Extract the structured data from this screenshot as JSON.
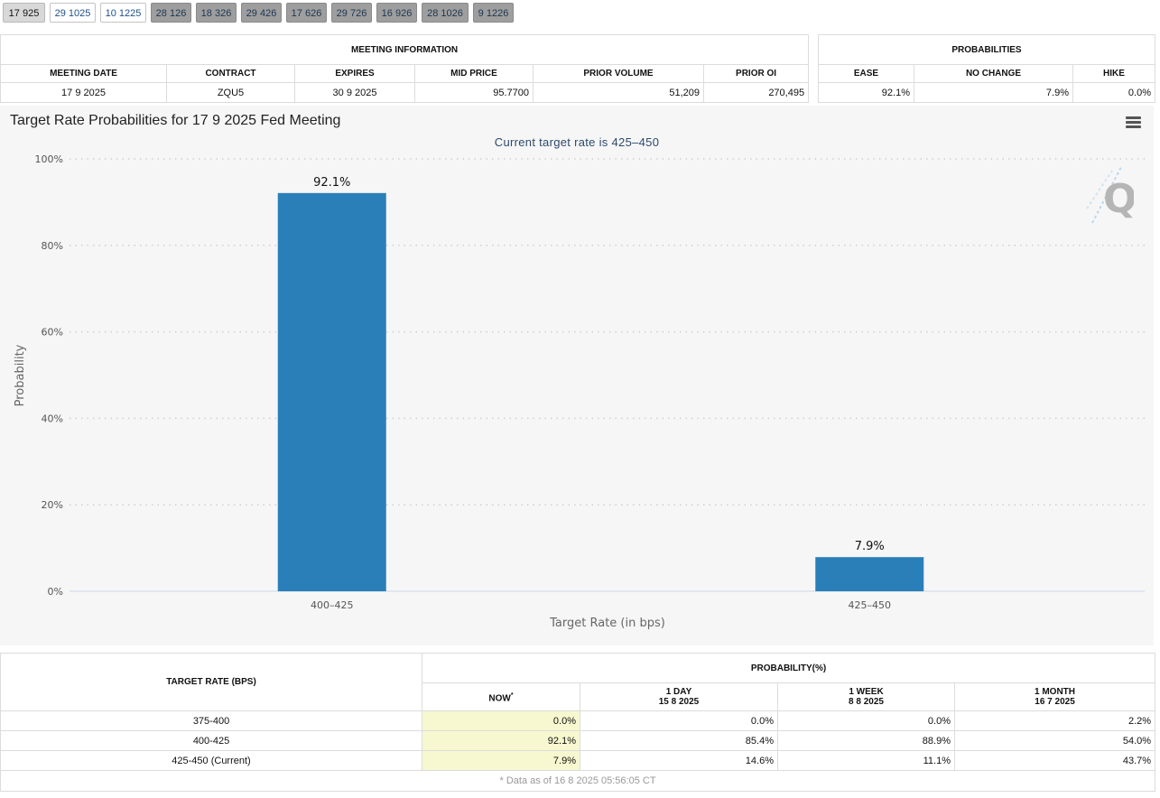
{
  "tabs": [
    {
      "label": "17 925",
      "state": "active"
    },
    {
      "label": "29 1025",
      "state": "light"
    },
    {
      "label": "10 1225",
      "state": "light"
    },
    {
      "label": "28 126",
      "state": "dark"
    },
    {
      "label": "18 326",
      "state": "dark"
    },
    {
      "label": "29 426",
      "state": "dark"
    },
    {
      "label": "17 626",
      "state": "dark"
    },
    {
      "label": "29 726",
      "state": "dark"
    },
    {
      "label": "16 926",
      "state": "dark"
    },
    {
      "label": "28 1026",
      "state": "dark"
    },
    {
      "label": "9 1226",
      "state": "dark"
    }
  ],
  "meeting_info": {
    "caption": "MEETING INFORMATION",
    "headers": [
      "MEETING DATE",
      "CONTRACT",
      "EXPIRES",
      "MID PRICE",
      "PRIOR VOLUME",
      "PRIOR OI"
    ],
    "values": [
      "17 9 2025",
      "ZQU5",
      "30 9 2025",
      "95.7700",
      "51,209",
      "270,495"
    ]
  },
  "probabilities": {
    "caption": "PROBABILITIES",
    "headers": [
      "EASE",
      "NO CHANGE",
      "HIKE"
    ],
    "values": [
      "92.1%",
      "7.9%",
      "0.0%"
    ]
  },
  "chart_data": {
    "type": "bar",
    "title": "Target Rate Probabilities for 17 9 2025 Fed Meeting",
    "subtitle": "Current target rate is 425–450",
    "categories": [
      "400–425",
      "425–450"
    ],
    "values": [
      92.1,
      7.9
    ],
    "data_labels": [
      "92.1%",
      "7.9%"
    ],
    "xlabel": "Target Rate (in bps)",
    "ylabel": "Probability",
    "ylim": [
      0,
      100
    ],
    "yticks": [
      0,
      20,
      40,
      60,
      80,
      100
    ],
    "ytick_labels": [
      "0%",
      "20%",
      "40%",
      "60%",
      "80%",
      "100%"
    ],
    "grid": "horizontal-dotted",
    "bar_color": "#2b7fb8"
  },
  "prob_table": {
    "target_header": "TARGET RATE (BPS)",
    "group_header": "PROBABILITY(%)",
    "columns": [
      {
        "label": "NOW",
        "sup": "*",
        "date": ""
      },
      {
        "label": "1 DAY",
        "sup": "",
        "date": "15 8 2025"
      },
      {
        "label": "1 WEEK",
        "sup": "",
        "date": "8 8 2025"
      },
      {
        "label": "1 MONTH",
        "sup": "",
        "date": "16 7 2025"
      }
    ],
    "rows": [
      {
        "rate": "375-400",
        "values": [
          "0.0%",
          "0.0%",
          "0.0%",
          "2.2%"
        ]
      },
      {
        "rate": "400-425",
        "values": [
          "92.1%",
          "85.4%",
          "88.9%",
          "54.0%"
        ]
      },
      {
        "rate": "425-450 (Current)",
        "values": [
          "7.9%",
          "14.6%",
          "11.1%",
          "43.7%"
        ]
      }
    ],
    "footnote": "* Data as of 16 8 2025 05:56:05 CT"
  }
}
